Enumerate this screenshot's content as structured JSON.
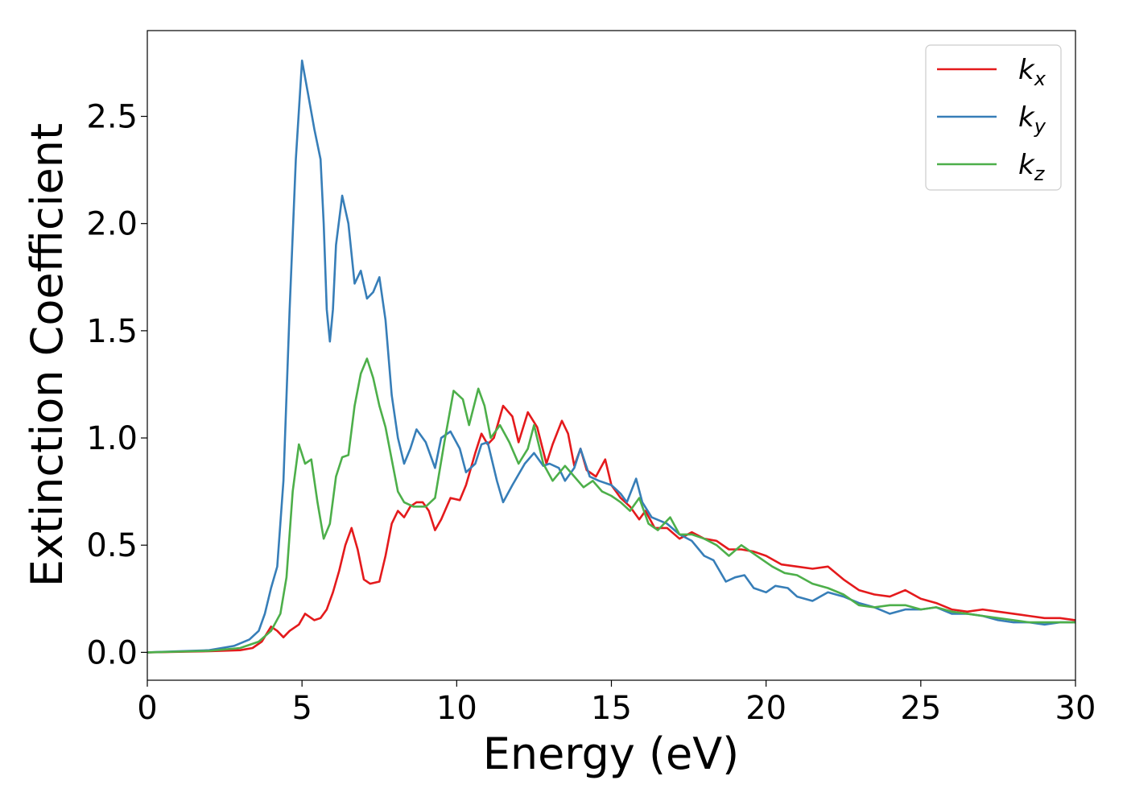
{
  "chart_data": {
    "type": "line",
    "title": "",
    "xlabel": "Energy (eV)",
    "ylabel": "Extinction Coefficient",
    "xlim": [
      0,
      30
    ],
    "ylim": [
      -0.13,
      2.9
    ],
    "xticks": [
      0,
      5,
      10,
      15,
      20,
      25,
      30
    ],
    "xtick_labels": [
      "0",
      "5",
      "10",
      "15",
      "20",
      "25",
      "30"
    ],
    "yticks": [
      0.0,
      0.5,
      1.0,
      1.5,
      2.0,
      2.5
    ],
    "ytick_labels": [
      "0.0",
      "0.5",
      "1.0",
      "1.5",
      "2.0",
      "2.5"
    ],
    "grid": false,
    "legend_position": "top-right",
    "series": [
      {
        "name": "k_x",
        "base": "k",
        "sub": "x",
        "color": "#e41a1c",
        "points": [
          [
            0,
            0
          ],
          [
            2,
            0.005
          ],
          [
            3,
            0.01
          ],
          [
            3.4,
            0.02
          ],
          [
            3.7,
            0.05
          ],
          [
            4.0,
            0.12
          ],
          [
            4.2,
            0.1
          ],
          [
            4.4,
            0.07
          ],
          [
            4.6,
            0.1
          ],
          [
            4.9,
            0.13
          ],
          [
            5.1,
            0.18
          ],
          [
            5.4,
            0.15
          ],
          [
            5.6,
            0.16
          ],
          [
            5.8,
            0.2
          ],
          [
            6.0,
            0.28
          ],
          [
            6.2,
            0.38
          ],
          [
            6.4,
            0.5
          ],
          [
            6.6,
            0.58
          ],
          [
            6.8,
            0.48
          ],
          [
            7.0,
            0.34
          ],
          [
            7.2,
            0.32
          ],
          [
            7.5,
            0.33
          ],
          [
            7.7,
            0.45
          ],
          [
            7.9,
            0.6
          ],
          [
            8.1,
            0.66
          ],
          [
            8.3,
            0.63
          ],
          [
            8.5,
            0.68
          ],
          [
            8.7,
            0.7
          ],
          [
            8.9,
            0.7
          ],
          [
            9.1,
            0.66
          ],
          [
            9.3,
            0.57
          ],
          [
            9.5,
            0.62
          ],
          [
            9.8,
            0.72
          ],
          [
            10.1,
            0.71
          ],
          [
            10.3,
            0.78
          ],
          [
            10.6,
            0.93
          ],
          [
            10.8,
            1.02
          ],
          [
            11.0,
            0.97
          ],
          [
            11.2,
            1.0
          ],
          [
            11.5,
            1.15
          ],
          [
            11.8,
            1.1
          ],
          [
            12.0,
            0.98
          ],
          [
            12.3,
            1.12
          ],
          [
            12.6,
            1.05
          ],
          [
            12.9,
            0.88
          ],
          [
            13.1,
            0.97
          ],
          [
            13.4,
            1.08
          ],
          [
            13.6,
            1.02
          ],
          [
            13.8,
            0.87
          ],
          [
            14.0,
            0.95
          ],
          [
            14.2,
            0.85
          ],
          [
            14.5,
            0.82
          ],
          [
            14.8,
            0.9
          ],
          [
            15.0,
            0.78
          ],
          [
            15.3,
            0.72
          ],
          [
            15.6,
            0.68
          ],
          [
            15.9,
            0.62
          ],
          [
            16.1,
            0.66
          ],
          [
            16.4,
            0.58
          ],
          [
            16.8,
            0.58
          ],
          [
            17.2,
            0.53
          ],
          [
            17.6,
            0.56
          ],
          [
            18.0,
            0.53
          ],
          [
            18.4,
            0.52
          ],
          [
            18.8,
            0.48
          ],
          [
            19.2,
            0.48
          ],
          [
            19.6,
            0.47
          ],
          [
            20.0,
            0.45
          ],
          [
            20.5,
            0.41
          ],
          [
            21.0,
            0.4
          ],
          [
            21.5,
            0.39
          ],
          [
            22.0,
            0.4
          ],
          [
            22.5,
            0.34
          ],
          [
            23.0,
            0.29
          ],
          [
            23.5,
            0.27
          ],
          [
            24.0,
            0.26
          ],
          [
            24.5,
            0.29
          ],
          [
            25.0,
            0.25
          ],
          [
            25.5,
            0.23
          ],
          [
            26.0,
            0.2
          ],
          [
            26.5,
            0.19
          ],
          [
            27.0,
            0.2
          ],
          [
            27.5,
            0.19
          ],
          [
            28.0,
            0.18
          ],
          [
            28.5,
            0.17
          ],
          [
            29.0,
            0.16
          ],
          [
            29.5,
            0.16
          ],
          [
            30,
            0.15
          ]
        ]
      },
      {
        "name": "k_y",
        "base": "k",
        "sub": "y",
        "color": "#377eb8",
        "points": [
          [
            0,
            0
          ],
          [
            1,
            0.005
          ],
          [
            2,
            0.01
          ],
          [
            2.8,
            0.03
          ],
          [
            3.3,
            0.06
          ],
          [
            3.6,
            0.1
          ],
          [
            3.8,
            0.18
          ],
          [
            4.0,
            0.3
          ],
          [
            4.2,
            0.4
          ],
          [
            4.4,
            0.8
          ],
          [
            4.6,
            1.6
          ],
          [
            4.8,
            2.3
          ],
          [
            5.0,
            2.76
          ],
          [
            5.2,
            2.6
          ],
          [
            5.4,
            2.44
          ],
          [
            5.6,
            2.3
          ],
          [
            5.7,
            2.0
          ],
          [
            5.8,
            1.6
          ],
          [
            5.9,
            1.45
          ],
          [
            6.0,
            1.6
          ],
          [
            6.1,
            1.9
          ],
          [
            6.3,
            2.13
          ],
          [
            6.5,
            2.0
          ],
          [
            6.7,
            1.72
          ],
          [
            6.9,
            1.78
          ],
          [
            7.1,
            1.65
          ],
          [
            7.3,
            1.68
          ],
          [
            7.5,
            1.75
          ],
          [
            7.7,
            1.55
          ],
          [
            7.9,
            1.2
          ],
          [
            8.1,
            1.0
          ],
          [
            8.3,
            0.88
          ],
          [
            8.5,
            0.95
          ],
          [
            8.7,
            1.04
          ],
          [
            9.0,
            0.98
          ],
          [
            9.3,
            0.86
          ],
          [
            9.5,
            1.0
          ],
          [
            9.8,
            1.03
          ],
          [
            10.1,
            0.95
          ],
          [
            10.3,
            0.84
          ],
          [
            10.6,
            0.88
          ],
          [
            10.8,
            0.97
          ],
          [
            11.0,
            0.98
          ],
          [
            11.3,
            0.8
          ],
          [
            11.5,
            0.7
          ],
          [
            11.8,
            0.78
          ],
          [
            12.2,
            0.88
          ],
          [
            12.5,
            0.93
          ],
          [
            12.8,
            0.87
          ],
          [
            13.0,
            0.88
          ],
          [
            13.3,
            0.86
          ],
          [
            13.5,
            0.8
          ],
          [
            13.8,
            0.86
          ],
          [
            14.0,
            0.95
          ],
          [
            14.3,
            0.82
          ],
          [
            14.6,
            0.8
          ],
          [
            15.0,
            0.78
          ],
          [
            15.3,
            0.74
          ],
          [
            15.5,
            0.7
          ],
          [
            15.8,
            0.81
          ],
          [
            16.0,
            0.7
          ],
          [
            16.3,
            0.63
          ],
          [
            16.8,
            0.6
          ],
          [
            17.2,
            0.55
          ],
          [
            17.6,
            0.52
          ],
          [
            18.0,
            0.45
          ],
          [
            18.3,
            0.43
          ],
          [
            18.7,
            0.33
          ],
          [
            19.0,
            0.35
          ],
          [
            19.3,
            0.36
          ],
          [
            19.6,
            0.3
          ],
          [
            20.0,
            0.28
          ],
          [
            20.3,
            0.31
          ],
          [
            20.7,
            0.3
          ],
          [
            21.0,
            0.26
          ],
          [
            21.5,
            0.24
          ],
          [
            22.0,
            0.28
          ],
          [
            22.5,
            0.26
          ],
          [
            23.0,
            0.23
          ],
          [
            23.5,
            0.21
          ],
          [
            24.0,
            0.18
          ],
          [
            24.5,
            0.2
          ],
          [
            25.0,
            0.2
          ],
          [
            25.5,
            0.21
          ],
          [
            26.0,
            0.18
          ],
          [
            26.5,
            0.18
          ],
          [
            27.0,
            0.17
          ],
          [
            27.5,
            0.15
          ],
          [
            28.0,
            0.14
          ],
          [
            28.5,
            0.14
          ],
          [
            29.0,
            0.13
          ],
          [
            29.5,
            0.14
          ],
          [
            30,
            0.14
          ]
        ]
      },
      {
        "name": "k_z",
        "base": "k",
        "sub": "z",
        "color": "#4daf4a",
        "points": [
          [
            0,
            0
          ],
          [
            2,
            0.007
          ],
          [
            3,
            0.02
          ],
          [
            3.6,
            0.05
          ],
          [
            4.0,
            0.1
          ],
          [
            4.3,
            0.18
          ],
          [
            4.5,
            0.35
          ],
          [
            4.7,
            0.75
          ],
          [
            4.9,
            0.97
          ],
          [
            5.1,
            0.88
          ],
          [
            5.3,
            0.9
          ],
          [
            5.5,
            0.7
          ],
          [
            5.7,
            0.53
          ],
          [
            5.9,
            0.6
          ],
          [
            6.1,
            0.82
          ],
          [
            6.3,
            0.91
          ],
          [
            6.5,
            0.92
          ],
          [
            6.7,
            1.15
          ],
          [
            6.9,
            1.3
          ],
          [
            7.1,
            1.37
          ],
          [
            7.3,
            1.28
          ],
          [
            7.5,
            1.15
          ],
          [
            7.7,
            1.05
          ],
          [
            7.9,
            0.9
          ],
          [
            8.1,
            0.75
          ],
          [
            8.3,
            0.7
          ],
          [
            8.6,
            0.68
          ],
          [
            9.0,
            0.68
          ],
          [
            9.3,
            0.72
          ],
          [
            9.6,
            0.98
          ],
          [
            9.9,
            1.22
          ],
          [
            10.2,
            1.18
          ],
          [
            10.4,
            1.06
          ],
          [
            10.7,
            1.23
          ],
          [
            10.9,
            1.15
          ],
          [
            11.1,
            1.0
          ],
          [
            11.4,
            1.06
          ],
          [
            11.7,
            0.98
          ],
          [
            12.0,
            0.88
          ],
          [
            12.3,
            0.95
          ],
          [
            12.5,
            1.06
          ],
          [
            12.8,
            0.88
          ],
          [
            13.1,
            0.8
          ],
          [
            13.5,
            0.87
          ],
          [
            13.8,
            0.82
          ],
          [
            14.1,
            0.77
          ],
          [
            14.4,
            0.8
          ],
          [
            14.7,
            0.75
          ],
          [
            15.0,
            0.73
          ],
          [
            15.3,
            0.7
          ],
          [
            15.6,
            0.66
          ],
          [
            15.9,
            0.72
          ],
          [
            16.2,
            0.6
          ],
          [
            16.5,
            0.57
          ],
          [
            16.9,
            0.63
          ],
          [
            17.2,
            0.55
          ],
          [
            17.6,
            0.55
          ],
          [
            18.0,
            0.53
          ],
          [
            18.4,
            0.5
          ],
          [
            18.8,
            0.45
          ],
          [
            19.2,
            0.5
          ],
          [
            19.5,
            0.47
          ],
          [
            19.8,
            0.44
          ],
          [
            20.2,
            0.4
          ],
          [
            20.6,
            0.37
          ],
          [
            21.0,
            0.36
          ],
          [
            21.5,
            0.32
          ],
          [
            22.0,
            0.3
          ],
          [
            22.5,
            0.27
          ],
          [
            23.0,
            0.22
          ],
          [
            23.5,
            0.21
          ],
          [
            24.0,
            0.22
          ],
          [
            24.5,
            0.22
          ],
          [
            25.0,
            0.2
          ],
          [
            25.5,
            0.21
          ],
          [
            26.0,
            0.19
          ],
          [
            26.5,
            0.18
          ],
          [
            27.0,
            0.17
          ],
          [
            27.5,
            0.16
          ],
          [
            28.0,
            0.15
          ],
          [
            28.5,
            0.14
          ],
          [
            29.0,
            0.14
          ],
          [
            29.5,
            0.14
          ],
          [
            30,
            0.14
          ]
        ]
      }
    ]
  }
}
